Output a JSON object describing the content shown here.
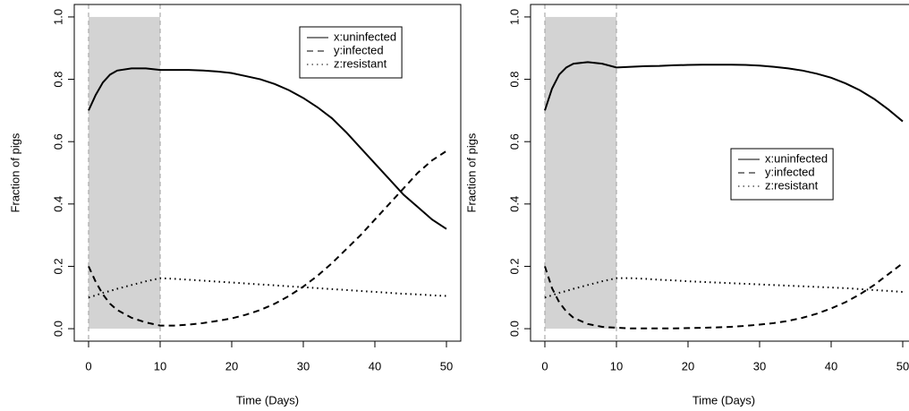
{
  "chart_data": [
    {
      "type": "line",
      "xlabel": "Time (Days)",
      "ylabel": "Fraction of pigs",
      "x": [
        0,
        1,
        2,
        3,
        4,
        6,
        8,
        10,
        12,
        14,
        16,
        18,
        20,
        22,
        24,
        26,
        28,
        30,
        32,
        34,
        36,
        38,
        40,
        42,
        44,
        46,
        48,
        50
      ],
      "series": [
        {
          "name": "x:uninfected",
          "color": "#000000",
          "dash": "solid",
          "values": [
            0.7,
            0.75,
            0.79,
            0.815,
            0.828,
            0.835,
            0.835,
            0.83,
            0.83,
            0.83,
            0.828,
            0.825,
            0.82,
            0.81,
            0.8,
            0.785,
            0.765,
            0.74,
            0.71,
            0.675,
            0.63,
            0.58,
            0.53,
            0.48,
            0.43,
            0.39,
            0.35,
            0.32
          ]
        },
        {
          "name": "y:infected",
          "color": "#000000",
          "dash": "dashed",
          "values": [
            0.2,
            0.15,
            0.11,
            0.08,
            0.06,
            0.035,
            0.02,
            0.01,
            0.01,
            0.013,
            0.018,
            0.025,
            0.033,
            0.045,
            0.06,
            0.08,
            0.105,
            0.135,
            0.17,
            0.21,
            0.255,
            0.3,
            0.35,
            0.4,
            0.45,
            0.5,
            0.54,
            0.57
          ]
        },
        {
          "name": "z:resistant",
          "color": "#000000",
          "dash": "dotted",
          "values": [
            0.1,
            0.107,
            0.115,
            0.121,
            0.128,
            0.14,
            0.152,
            0.162,
            0.16,
            0.157,
            0.154,
            0.151,
            0.148,
            0.145,
            0.142,
            0.139,
            0.136,
            0.133,
            0.13,
            0.127,
            0.124,
            0.121,
            0.118,
            0.115,
            0.112,
            0.11,
            0.107,
            0.105
          ]
        }
      ],
      "shaded_region": [
        0,
        10
      ],
      "shade_color": "#d3d3d3",
      "xlim": [
        -2,
        52
      ],
      "xticks": [
        0,
        10,
        20,
        30,
        40,
        50
      ],
      "ylim": [
        -0.04,
        1.04
      ],
      "yticks": [
        {
          "value": 0,
          "label": "0.0"
        },
        0.2,
        0.4,
        0.6,
        0.8,
        {
          "value": 1,
          "label": "1.0"
        }
      ],
      "legend": "topright"
    },
    {
      "type": "line",
      "xlabel": "Time (Days)",
      "ylabel": "Fraction of pigs",
      "x": [
        0,
        1,
        2,
        3,
        4,
        6,
        8,
        10,
        12,
        14,
        16,
        18,
        20,
        22,
        24,
        26,
        28,
        30,
        32,
        34,
        36,
        38,
        40,
        42,
        44,
        46,
        48,
        50
      ],
      "series": [
        {
          "name": "x:uninfected",
          "color": "#000000",
          "dash": "solid",
          "values": [
            0.7,
            0.77,
            0.815,
            0.838,
            0.85,
            0.855,
            0.85,
            0.838,
            0.84,
            0.842,
            0.843,
            0.845,
            0.846,
            0.847,
            0.847,
            0.847,
            0.846,
            0.844,
            0.84,
            0.835,
            0.828,
            0.818,
            0.805,
            0.787,
            0.765,
            0.737,
            0.703,
            0.665
          ]
        },
        {
          "name": "y:infected",
          "color": "#000000",
          "dash": "dashed",
          "values": [
            0.2,
            0.13,
            0.085,
            0.055,
            0.035,
            0.015,
            0.006,
            0.003,
            0.001,
            0.001,
            0.001,
            0.001,
            0.002,
            0.003,
            0.004,
            0.006,
            0.009,
            0.013,
            0.018,
            0.025,
            0.035,
            0.048,
            0.065,
            0.085,
            0.11,
            0.14,
            0.175,
            0.21
          ]
        },
        {
          "name": "z:resistant",
          "color": "#000000",
          "dash": "dotted",
          "values": [
            0.1,
            0.107,
            0.115,
            0.121,
            0.128,
            0.14,
            0.152,
            0.162,
            0.162,
            0.16,
            0.157,
            0.155,
            0.152,
            0.15,
            0.148,
            0.146,
            0.144,
            0.142,
            0.14,
            0.138,
            0.136,
            0.134,
            0.132,
            0.13,
            0.127,
            0.124,
            0.121,
            0.118
          ]
        }
      ],
      "shaded_region": [
        0,
        10
      ],
      "shade_color": "#d3d3d3",
      "xlim": [
        -2,
        52
      ],
      "xticks": [
        0,
        10,
        20,
        30,
        40,
        50
      ],
      "ylim": [
        -0.04,
        1.04
      ],
      "yticks": [
        {
          "value": 0,
          "label": "0.0"
        },
        0.2,
        0.4,
        0.6,
        0.8,
        {
          "value": 1,
          "label": "1.0"
        }
      ],
      "legend": "right"
    }
  ]
}
